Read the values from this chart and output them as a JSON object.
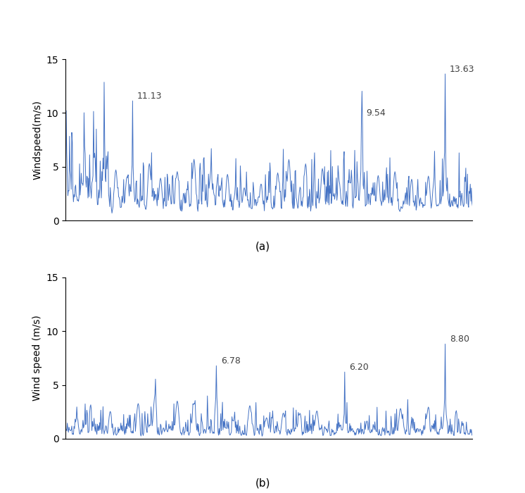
{
  "panel_a": {
    "ylabel": "Windspeed(m/s)",
    "ylim": [
      0,
      15
    ],
    "yticks": [
      0,
      5,
      10,
      15
    ],
    "label": "(a)",
    "peaks": [
      {
        "index": 120,
        "value": 11.13,
        "label": "11.13"
      },
      {
        "index": 530,
        "value": 9.54,
        "label": "9.54"
      },
      {
        "index": 680,
        "value": 13.63,
        "label": "13.63"
      }
    ],
    "line_color": "#4472C4"
  },
  "panel_b": {
    "ylabel": "Wind speed (m/s)",
    "ylim": [
      0,
      15
    ],
    "yticks": [
      0,
      5,
      10,
      15
    ],
    "label": "(b)",
    "peaks": [
      {
        "index": 270,
        "value": 6.78,
        "label": "6.78"
      },
      {
        "index": 500,
        "value": 6.2,
        "label": "6.20"
      },
      {
        "index": 680,
        "value": 8.8,
        "label": "8.80"
      }
    ],
    "line_color": "#4472C4"
  },
  "n_points": 730,
  "fig_width": 7.46,
  "fig_height": 7.0,
  "dpi": 100
}
